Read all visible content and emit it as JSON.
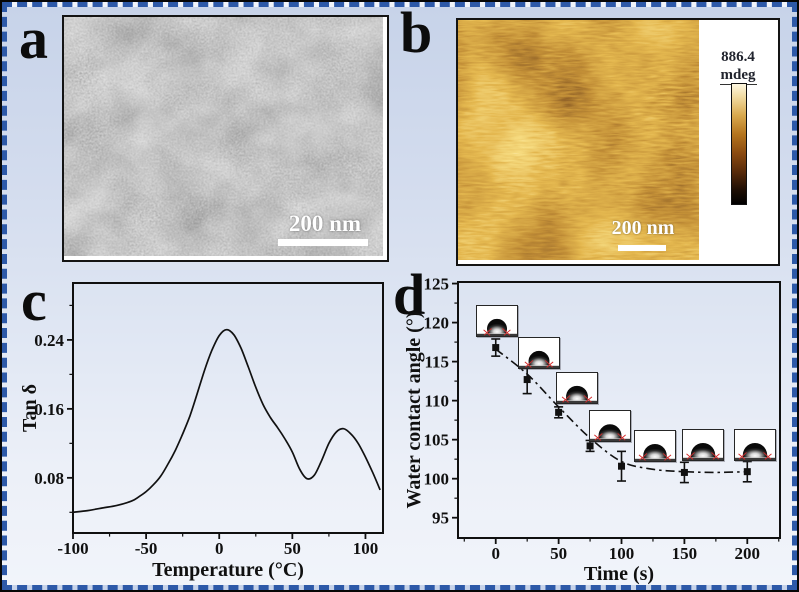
{
  "panels": {
    "a": {
      "label": "a",
      "type": "sem-micrograph",
      "scale_bar": "200 nm"
    },
    "b": {
      "label": "b",
      "type": "afm-phase-image",
      "scale_bar": "200 nm",
      "colorbar_max": "886.4",
      "colorbar_unit": "mdeg"
    },
    "c": {
      "label": "c"
    },
    "d": {
      "label": "d"
    }
  },
  "colors": {
    "frame_border": "#2d59a8",
    "background_top": "#c7d3e9",
    "background_bottom": "#f1f4fa",
    "curve": "#111111",
    "contact_angle_marker_red": "#d42a2a",
    "afm_palette": [
      "#000000",
      "#3a1d05",
      "#8a4a0e",
      "#c8922f",
      "#f3e3b0"
    ]
  },
  "chart_data": [
    {
      "id": "tan-delta-vs-temperature",
      "type": "line",
      "title": "",
      "xlabel": "Temperature (°C)",
      "ylabel": "Tan δ",
      "xlim": [
        -100,
        112
      ],
      "ylim": [
        0.016,
        0.306
      ],
      "xticks": [
        -100,
        -50,
        0,
        50,
        100
      ],
      "xtick_labels": [
        "-100",
        "-50",
        "0",
        "50",
        "100"
      ],
      "yticks": [
        0.08,
        0.16,
        0.24
      ],
      "ytick_labels": [
        "0.08",
        "0.16",
        "0.24"
      ],
      "x_minor_step": 25,
      "y_minor_step": 0.04,
      "grid": false,
      "legend": "none",
      "x": [
        -100,
        -90,
        -80,
        -70,
        -60,
        -55,
        -50,
        -45,
        -40,
        -35,
        -30,
        -25,
        -20,
        -15,
        -10,
        -5,
        0,
        5,
        10,
        15,
        20,
        25,
        30,
        35,
        40,
        45,
        50,
        55,
        60,
        65,
        70,
        75,
        80,
        85,
        90,
        95,
        100,
        105,
        110
      ],
      "y": [
        0.04,
        0.042,
        0.045,
        0.048,
        0.053,
        0.058,
        0.064,
        0.072,
        0.082,
        0.096,
        0.112,
        0.131,
        0.152,
        0.178,
        0.205,
        0.228,
        0.245,
        0.252,
        0.246,
        0.23,
        0.208,
        0.185,
        0.165,
        0.15,
        0.138,
        0.125,
        0.11,
        0.09,
        0.079,
        0.083,
        0.1,
        0.12,
        0.133,
        0.137,
        0.131,
        0.12,
        0.104,
        0.086,
        0.066
      ]
    },
    {
      "id": "water-contact-angle-vs-time",
      "type": "scatter-errorbar",
      "title": "",
      "xlabel": "Time (s)",
      "ylabel": "Water contact angle (°)",
      "xlim": [
        -30,
        226
      ],
      "ylim": [
        92.4,
        125.2
      ],
      "xticks": [
        0,
        50,
        100,
        150,
        200
      ],
      "xtick_labels": [
        "0",
        "50",
        "100",
        "150",
        "200"
      ],
      "yticks": [
        95,
        100,
        105,
        110,
        115,
        120,
        125
      ],
      "ytick_labels": [
        "95",
        "100",
        "105",
        "110",
        "115",
        "120",
        "125"
      ],
      "x_minor_step": 25,
      "y_minor_step": 2.5,
      "grid": false,
      "marker": "square",
      "line_style": "dash-dot",
      "x": [
        0,
        25,
        50,
        75,
        100,
        150,
        200
      ],
      "y": [
        116.8,
        112.7,
        108.5,
        104.2,
        101.6,
        100.8,
        100.9
      ],
      "yerr": [
        1.1,
        1.8,
        0.7,
        0.7,
        1.9,
        1.3,
        1.3
      ],
      "trend_x": [
        0,
        25,
        50,
        75,
        100,
        125,
        150,
        175,
        200
      ],
      "trend_y": [
        116.6,
        113.4,
        109.2,
        105.2,
        102.2,
        101.2,
        100.9,
        100.8,
        100.9
      ],
      "inset_contact_angles_deg": [
        117,
        113,
        108.5,
        104,
        102,
        101,
        101
      ]
    }
  ]
}
